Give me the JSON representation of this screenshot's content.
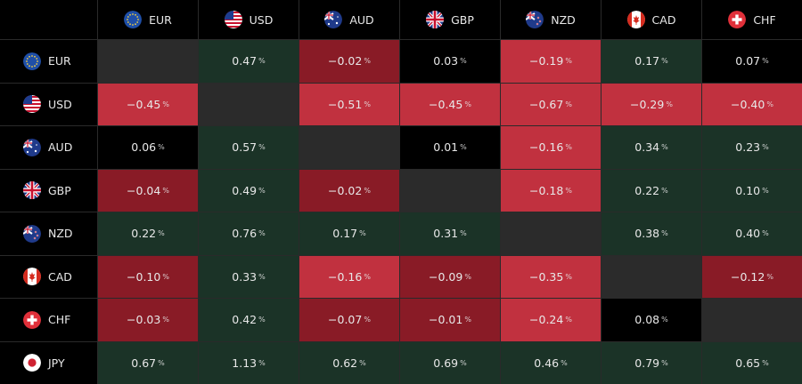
{
  "currencies": [
    "EUR",
    "USD",
    "AUD",
    "GBP",
    "NZD",
    "CAD",
    "CHF"
  ],
  "rows": [
    {
      "code": "EUR",
      "values": [
        null,
        "0.47",
        "−0.02",
        "0.03",
        "−0.19",
        "0.17",
        "0.07"
      ]
    },
    {
      "code": "USD",
      "values": [
        "−0.45",
        null,
        "−0.51",
        "−0.45",
        "−0.67",
        "−0.29",
        "−0.40"
      ]
    },
    {
      "code": "AUD",
      "values": [
        "0.06",
        "0.57",
        null,
        "0.01",
        "−0.16",
        "0.34",
        "0.23"
      ]
    },
    {
      "code": "GBP",
      "values": [
        "−0.04",
        "0.49",
        "−0.02",
        null,
        "−0.18",
        "0.22",
        "0.10"
      ]
    },
    {
      "code": "NZD",
      "values": [
        "0.22",
        "0.76",
        "0.17",
        "0.31",
        null,
        "0.38",
        "0.40"
      ]
    },
    {
      "code": "CAD",
      "values": [
        "−0.10",
        "0.33",
        "−0.16",
        "−0.09",
        "−0.35",
        null,
        "−0.12"
      ]
    },
    {
      "code": "CHF",
      "values": [
        "−0.03",
        "0.42",
        "−0.07",
        "−0.01",
        "−0.24",
        "0.08",
        null
      ]
    },
    {
      "code": "JPY",
      "values": [
        "0.67",
        "1.13",
        "0.62",
        "0.69",
        "0.46",
        "0.79",
        "0.65"
      ]
    }
  ],
  "percent_symbol": "%",
  "colors": {
    "strong_negative": "#c1313f",
    "weak_negative": "#891b26",
    "positive": "#1b3327",
    "neutral": "#000000",
    "self": "#2b2b2b"
  },
  "flags": {
    "EUR": "eu-flag-icon",
    "USD": "us-flag-icon",
    "AUD": "au-flag-icon",
    "GBP": "gb-flag-icon",
    "NZD": "nz-flag-icon",
    "CAD": "ca-flag-icon",
    "CHF": "ch-flag-icon",
    "JPY": "jp-flag-icon"
  }
}
